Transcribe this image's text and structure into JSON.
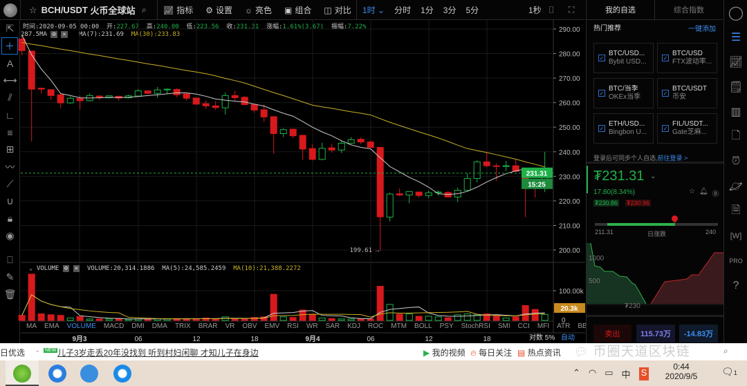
{
  "header": {
    "symbol": "BCH/USDT",
    "exchange": "火币全球站",
    "toolbar": [
      "指标",
      "设置",
      "亮色",
      "组合",
      "对比"
    ],
    "interval_selected": "1时",
    "intervals": [
      "分时",
      "1分",
      "3分",
      "5分"
    ],
    "tick": "1秒"
  },
  "info": {
    "time_label": "时间:",
    "time": "2020-09-05 00:00",
    "open_label": "开:",
    "open": "227.67",
    "high_label": "高:",
    "high": "240.00",
    "low_label": "低:",
    "low": "223.56",
    "close_label": "收:",
    "close": "231.31",
    "chg_label": "涨幅:",
    "chg": "1.61%(3.67)",
    "amp_label": "振幅:",
    "amp": "7.22%"
  },
  "ma_legend": {
    "prefix": "287.5MA",
    "ma7": "MA(7):231.69",
    "ma30": "MA(30):233.83"
  },
  "volume_legend": {
    "name": "VOLUME",
    "vol": "VOLUME:20,314.1886",
    "ma5": "MA(5):24,585.2459",
    "ma10": "MA(10):21,388.2272"
  },
  "price_axis": {
    "ticks": [
      "290.00",
      "280.00",
      "270.00",
      "260.00",
      "250.00",
      "240.00",
      "230.00",
      "220.00",
      "210.00",
      "200.00"
    ],
    "last_price": "231.31",
    "countdown": "15:25",
    "low_marker": "199.61"
  },
  "volume_axis": {
    "ticks": [
      "100.00k",
      "0"
    ],
    "last": "20.3k"
  },
  "indicators": [
    "MA",
    "EMA",
    "VOLUME",
    "MACD",
    "DMI",
    "DMA",
    "TRIX",
    "BRAR",
    "VR",
    "OBV",
    "EMV",
    "RSI",
    "WR",
    "SAR",
    "KDJ",
    "ROC",
    "MTM",
    "BOLL",
    "PSY",
    "StochRSI",
    "SMI",
    "CCI",
    "MFI",
    "ATR",
    "BBW",
    "SKDJ",
    "BIAS"
  ],
  "active_indicator": "VOLUME",
  "time_axis": [
    "9月3",
    "06",
    "12",
    "18",
    "9月4",
    "06",
    "12",
    "18"
  ],
  "axis_opts": {
    "log": "对数",
    "percent": "5%",
    "auto": "自动"
  },
  "colors": {
    "up": "#1fb24a",
    "down": "#d7191c",
    "ma7": "#cccccc",
    "ma30": "#c9b227",
    "accent": "#3d8ef0",
    "vol_tag": "#c8891d"
  },
  "chart_data": {
    "type": "candlestick",
    "interval": "1h",
    "ylim": [
      195,
      292
    ],
    "open": [
      285.9,
      281.0,
      265.9,
      265.3,
      263.2,
      259.9,
      261.7,
      260.8,
      262.7,
      262.0,
      262.6,
      262.0,
      262.7,
      264.8,
      263.8,
      265.2,
      265.4,
      263.6,
      261.9,
      259.6,
      258.7,
      257.9,
      262.9,
      262.2,
      259.3,
      257.1,
      254.3,
      247.4,
      249.2,
      246.7,
      241.3,
      236.9,
      241.6,
      240.7,
      243.5,
      245.1,
      244.0,
      241.8,
      213.4,
      222.9,
      222.4,
      223.6,
      222.2,
      223.3,
      223.4,
      221.6,
      224.3,
      229.1,
      235.9,
      234.3,
      234.1,
      234.3,
      232.0,
      228.4,
      227.67
    ],
    "high": [
      287.5,
      281.2,
      266.0,
      265.5,
      263.6,
      262.6,
      262.9,
      263.8,
      263.0,
      263.0,
      262.8,
      263.3,
      265.5,
      264.9,
      266.4,
      265.8,
      265.9,
      263.8,
      262.0,
      260.9,
      260.6,
      264.1,
      264.8,
      262.7,
      259.5,
      259.2,
      254.5,
      249.6,
      249.4,
      246.9,
      243.0,
      243.7,
      243.2,
      244.4,
      246.0,
      245.9,
      244.6,
      242.0,
      223.4,
      225.0,
      223.9,
      223.8,
      224.2,
      224.2,
      224.0,
      225.4,
      231.3,
      236.5,
      239.7,
      235.3,
      236.2,
      237.0,
      233.4,
      228.9,
      240.0
    ],
    "low": [
      279.3,
      244.2,
      263.7,
      261.2,
      257.7,
      259.5,
      257.3,
      260.5,
      261.0,
      261.8,
      260.8,
      261.7,
      262.5,
      263.4,
      262.0,
      263.6,
      262.2,
      260.8,
      259.2,
      257.5,
      257.1,
      255.2,
      260.8,
      259.0,
      255.9,
      252.1,
      239.2,
      246.0,
      245.6,
      236.7,
      236.5,
      236.5,
      239.7,
      239.5,
      243.2,
      243.1,
      241.5,
      199.61,
      211.6,
      221.9,
      219.0,
      221.4,
      221.2,
      222.1,
      221.4,
      219.5,
      223.8,
      227.5,
      233.7,
      228.2,
      232.2,
      231.8,
      213.4,
      221.4,
      223.56
    ],
    "close": [
      281.2,
      265.5,
      265.5,
      262.9,
      259.9,
      261.8,
      260.8,
      262.9,
      262.2,
      262.8,
      261.9,
      262.8,
      264.8,
      263.8,
      265.2,
      265.5,
      263.2,
      261.8,
      259.4,
      258.7,
      258.0,
      262.9,
      262.0,
      259.2,
      257.0,
      254.2,
      247.4,
      249.0,
      246.5,
      241.1,
      236.9,
      241.4,
      240.7,
      243.5,
      244.9,
      244.0,
      241.8,
      213.5,
      222.8,
      222.4,
      223.8,
      222.2,
      223.3,
      223.6,
      221.6,
      224.3,
      229.1,
      235.9,
      234.3,
      234.1,
      234.3,
      232.0,
      228.4,
      227.8,
      231.31
    ],
    "ma7": [
      287.5,
      279.5,
      273.7,
      269.1,
      263.7,
      262.9,
      262.0,
      261.9,
      262.0,
      262.2,
      262.1,
      262.2,
      262.5,
      262.9,
      263.2,
      263.6,
      264.0,
      264.0,
      263.5,
      262.6,
      261.5,
      261.0,
      260.6,
      260.3,
      259.4,
      258.6,
      257.1,
      255.7,
      254.5,
      252.3,
      250.0,
      248.1,
      246.5,
      244.5,
      242.8,
      241.8,
      241.2,
      237.6,
      234.0,
      231.8,
      229.6,
      227.8,
      225.6,
      222.9,
      222.6,
      222.9,
      223.9,
      225.6,
      227.7,
      229.5,
      231.1,
      232.2,
      233.0,
      232.6,
      231.69
    ],
    "ma30": [
      284.5,
      283.8,
      283.2,
      282.5,
      281.8,
      281.2,
      280.5,
      279.8,
      279.2,
      278.5,
      277.8,
      277.2,
      276.5,
      275.8,
      275.2,
      274.5,
      273.8,
      273.1,
      272.5,
      271.8,
      270.9,
      269.9,
      269.0,
      268.0,
      266.7,
      265.4,
      264.1,
      262.9,
      261.6,
      260.3,
      259.0,
      258.3,
      257.7,
      257.0,
      256.3,
      255.7,
      255.0,
      253.5,
      252.0,
      250.7,
      249.4,
      248.1,
      246.9,
      245.6,
      244.2,
      242.7,
      241.3,
      240.5,
      239.7,
      238.8,
      237.9,
      237.0,
      235.9,
      234.9,
      233.83
    ],
    "volume_k": [
      17,
      156,
      22,
      19,
      17,
      8,
      13,
      5,
      5,
      5,
      6,
      4,
      5,
      5,
      6,
      5,
      6,
      6,
      6,
      8,
      5,
      12,
      5,
      5,
      10,
      12,
      88,
      12,
      10,
      35,
      20,
      8,
      6,
      5,
      5,
      6,
      5,
      115,
      54,
      21,
      22,
      14,
      14,
      12,
      9,
      19,
      22,
      19,
      22,
      15,
      8,
      12,
      50,
      37,
      20.3
    ]
  },
  "right_panel": {
    "tabs": [
      "我的自选",
      "综合指数"
    ],
    "hot_title": "热门推荐",
    "add_all": "一键添加",
    "cards": [
      {
        "pair": "BTC/USD...",
        "venue": "Bybit USD..."
      },
      {
        "pair": "BTC/USD",
        "venue": "FTX波动率..."
      },
      {
        "pair": "BTC/当季",
        "venue": "OKEx当季"
      },
      {
        "pair": "BTC/USDT",
        "venue": "币安"
      },
      {
        "pair": "ETH/USD...",
        "venue": "Bingbon U..."
      },
      {
        "pair": "FIL/USDT...",
        "venue": "Gate芝麻..."
      }
    ],
    "login_hint": "登录后可同步个人自选,",
    "login_link": "前往登录 >",
    "price": "₮231.31",
    "change": "17.80(8.34%)",
    "bid": "₮230.86",
    "ask": "₮230.96",
    "range_low": "211.31",
    "range_label": "日涨跌",
    "range_high": "240",
    "range_position": 0.65,
    "depth_labels": [
      "1000",
      "500"
    ],
    "depth_price": "₮230",
    "sell": "卖出",
    "val1": "115.73万",
    "val2": "-14.83万"
  },
  "browser": {
    "left": "日优选",
    "new_badge": "NEW",
    "headline": "儿子3岁走丢20年没找到 听到村妇闲聊 才知儿子在身边",
    "links": [
      "我的视频",
      "每日关注",
      "热点资讯"
    ],
    "watermark": "币圈天道区块链"
  },
  "taskbar": {
    "time": "0:44",
    "date": "2020/9/5",
    "ime": "中",
    "notifications": "1"
  }
}
